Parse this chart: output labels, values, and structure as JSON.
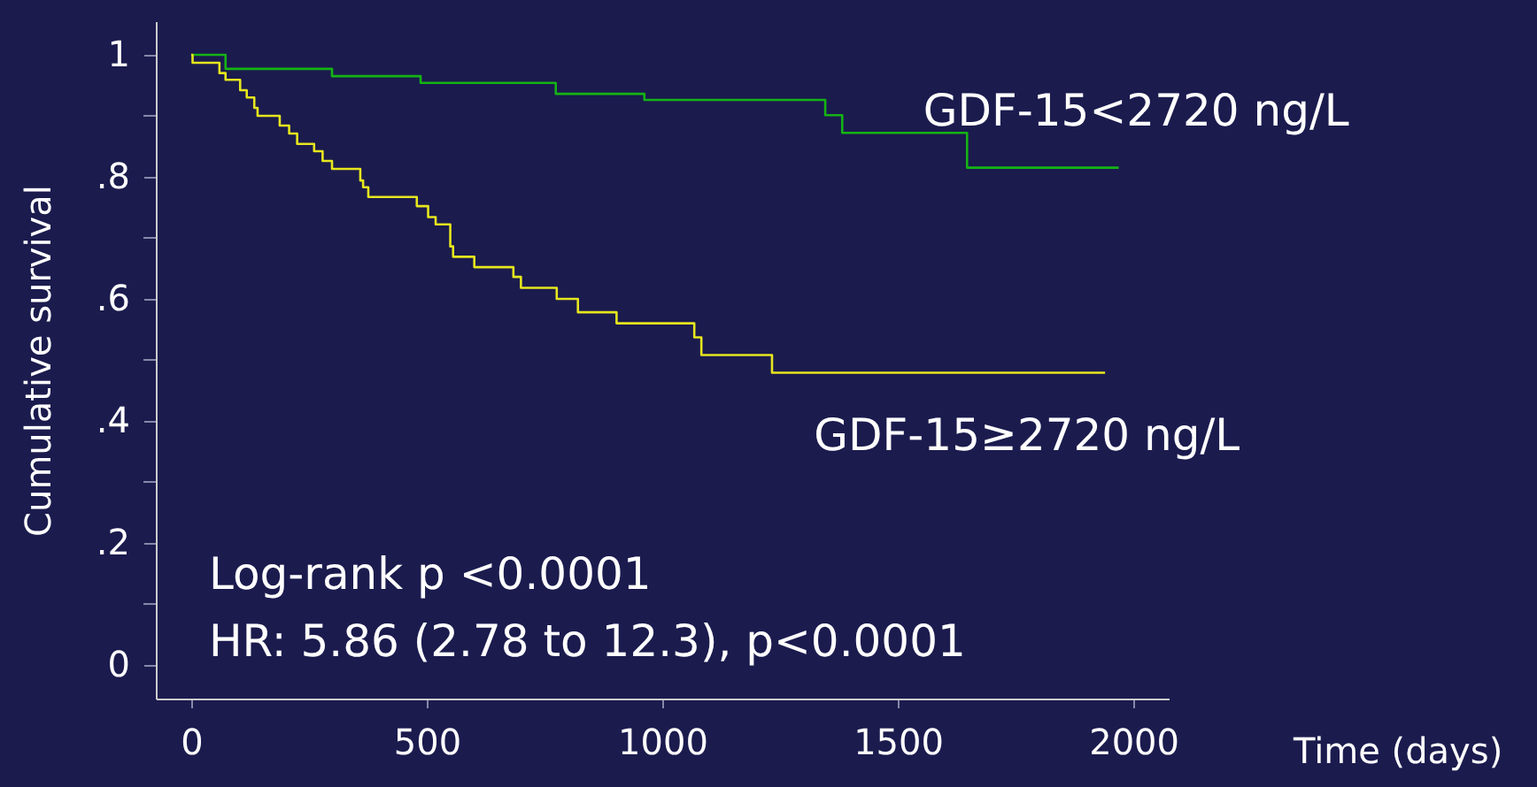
{
  "chart_data": {
    "type": "step",
    "xlabel": "Time (days)",
    "ylabel": "Cumulative survival",
    "xlim": [
      -75,
      2075
    ],
    "xticks": [
      0,
      500,
      1000,
      1500,
      2000
    ],
    "ylim": [
      -0.055,
      1.055
    ],
    "yticks": [
      {
        "value": 0,
        "label": "0"
      },
      {
        "value": 0.1,
        "label": null
      },
      {
        "value": 0.2,
        "label": ".2"
      },
      {
        "value": 0.3,
        "label": null
      },
      {
        "value": 0.4,
        "label": ".4"
      },
      {
        "value": 0.5,
        "label": null
      },
      {
        "value": 0.6,
        "label": ".6"
      },
      {
        "value": 0.7,
        "label": null
      },
      {
        "value": 0.8,
        "label": ".8"
      },
      {
        "value": 0.9,
        "label": null
      },
      {
        "value": 1,
        "label": "1"
      }
    ],
    "grid": false,
    "marker": "none",
    "line_style": "solid",
    "series": [
      {
        "name": "GDF-15<2720 ng/L",
        "color": "#14b414",
        "x": [
          0,
          73,
          299,
          487,
          774,
          962,
          1346,
          1382,
          1647,
          1969
        ],
        "values": [
          1.0,
          0.977,
          0.965,
          0.954,
          0.936,
          0.926,
          0.901,
          0.872,
          0.815,
          0.815
        ]
      },
      {
        "name": "GDF-15≥2720 ng/L",
        "color": "#e6e61e",
        "x": [
          0,
          3,
          60,
          73,
          104,
          118,
          134,
          141,
          188,
          208,
          225,
          261,
          279,
          299,
          359,
          365,
          376,
          479,
          503,
          519,
          550,
          556,
          601,
          684,
          700,
          776,
          821,
          903,
          1068,
          1083,
          1233,
          1940
        ],
        "values": [
          1.0,
          0.987,
          0.97,
          0.959,
          0.942,
          0.93,
          0.913,
          0.9,
          0.884,
          0.871,
          0.854,
          0.842,
          0.826,
          0.813,
          0.794,
          0.783,
          0.767,
          0.752,
          0.734,
          0.722,
          0.686,
          0.669,
          0.652,
          0.636,
          0.618,
          0.6,
          0.578,
          0.56,
          0.537,
          0.508,
          0.479,
          0.479
        ]
      }
    ],
    "annotations": [
      "Log-rank p <0.0001",
      "HR: 5.86 (2.78 to 12.3), p<0.0001"
    ]
  }
}
